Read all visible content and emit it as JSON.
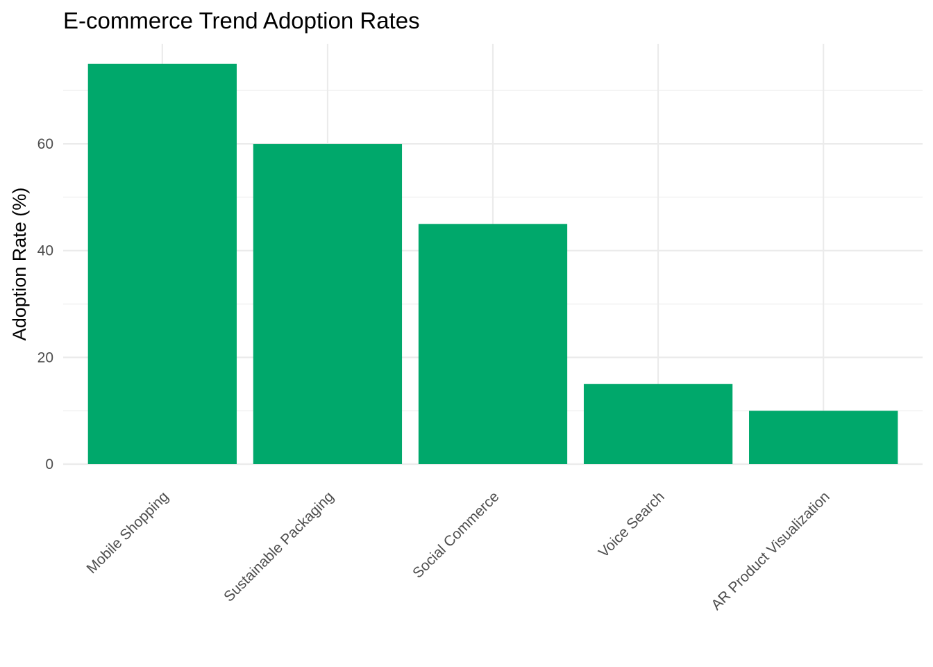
{
  "chart_data": {
    "type": "bar",
    "title": "E-commerce Trend Adoption Rates",
    "xlabel": "",
    "ylabel": "Adoption Rate (%)",
    "categories": [
      "Mobile Shopping",
      "Sustainable Packaging",
      "Social Commerce",
      "Voice Search",
      "AR Product Visualization"
    ],
    "values": [
      75,
      60,
      45,
      15,
      10
    ],
    "ylim": [
      0,
      78.75
    ],
    "yticks": [
      0,
      20,
      40,
      60
    ],
    "ytick_labels": [
      "0",
      "20",
      "40",
      "60"
    ],
    "grid": true,
    "legend": "none",
    "bar_color": "#00A86B"
  }
}
